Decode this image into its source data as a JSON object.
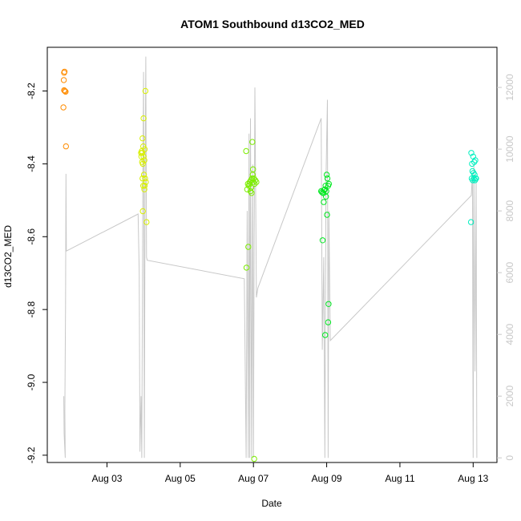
{
  "chart_data": {
    "type": "scatter",
    "title": "ATOM1 Southbound d13CO2_MED",
    "xlabel": "Date",
    "ylabel": "d13CO2_MED",
    "x_ticks": [
      {
        "label": "Aug 03",
        "day": 3
      },
      {
        "label": "Aug 05",
        "day": 5
      },
      {
        "label": "Aug 07",
        "day": 7
      },
      {
        "label": "Aug 09",
        "day": 9
      },
      {
        "label": "Aug 11",
        "day": 11
      },
      {
        "label": "Aug 13",
        "day": 13
      }
    ],
    "xlim": [
      1.37,
      13.65
    ],
    "ylim": [
      -9.22,
      -8.08
    ],
    "y_ticks": [
      "-9.2",
      "-9.0",
      "-8.8",
      "-8.6",
      "-8.4",
      "-8.2"
    ],
    "y2lim": [
      -150,
      13300
    ],
    "y2_ticks": [
      "0",
      "2000",
      "4000",
      "6000",
      "8000",
      "10000",
      "12000"
    ],
    "grid": false,
    "series": [
      {
        "color": "#ff8c00",
        "marker": "open-circle",
        "points": [
          [
            1.83,
            -8.15
          ],
          [
            1.84,
            -8.147
          ],
          [
            1.82,
            -8.17
          ],
          [
            1.85,
            -8.2
          ],
          [
            1.83,
            -8.198
          ],
          [
            1.87,
            -8.202
          ],
          [
            1.81,
            -8.245
          ],
          [
            1.88,
            -8.352
          ]
        ]
      },
      {
        "color": "#d8f000",
        "marker": "open-circle",
        "points": [
          [
            3.93,
            -8.37
          ],
          [
            3.95,
            -8.365
          ],
          [
            3.97,
            -8.33
          ],
          [
            3.99,
            -8.352
          ],
          [
            4.0,
            -8.38
          ],
          [
            4.02,
            -8.39
          ],
          [
            4.05,
            -8.2
          ],
          [
            4.0,
            -8.275
          ],
          [
            3.96,
            -8.37
          ],
          [
            3.98,
            -8.4
          ],
          [
            4.01,
            -8.43
          ],
          [
            4.04,
            -8.44
          ],
          [
            4.06,
            -8.45
          ],
          [
            3.97,
            -8.44
          ],
          [
            3.99,
            -8.46
          ],
          [
            4.02,
            -8.47
          ],
          [
            4.03,
            -8.46
          ],
          [
            3.98,
            -8.53
          ],
          [
            4.08,
            -8.56
          ],
          [
            4.03,
            -8.36
          ],
          [
            3.94,
            -8.38
          ],
          [
            3.96,
            -8.395
          ]
        ]
      },
      {
        "color": "#7ced00",
        "marker": "open-circle",
        "points": [
          [
            6.8,
            -8.365
          ],
          [
            6.83,
            -8.47
          ],
          [
            6.85,
            -8.455
          ],
          [
            6.87,
            -8.46
          ],
          [
            6.9,
            -8.45
          ],
          [
            6.93,
            -8.445
          ],
          [
            6.96,
            -8.44
          ],
          [
            6.98,
            -8.43
          ],
          [
            7.0,
            -8.45
          ],
          [
            7.03,
            -8.455
          ],
          [
            7.05,
            -8.445
          ],
          [
            7.08,
            -8.45
          ],
          [
            6.95,
            -8.48
          ],
          [
            6.92,
            -8.475
          ],
          [
            6.97,
            -8.34
          ],
          [
            6.99,
            -8.415
          ],
          [
            6.86,
            -8.628
          ],
          [
            6.81,
            -8.685
          ],
          [
            7.02,
            -9.21
          ],
          [
            6.94,
            -8.465
          ],
          [
            7.01,
            -8.44
          ],
          [
            6.89,
            -8.455
          ]
        ]
      },
      {
        "color": "#00e820",
        "marker": "open-circle",
        "points": [
          [
            8.85,
            -8.475
          ],
          [
            8.87,
            -8.478
          ],
          [
            8.9,
            -8.48
          ],
          [
            8.93,
            -8.472
          ],
          [
            8.95,
            -8.47
          ],
          [
            8.97,
            -8.46
          ],
          [
            9.0,
            -8.43
          ],
          [
            9.02,
            -8.44
          ],
          [
            9.04,
            -8.46
          ],
          [
            9.06,
            -8.455
          ],
          [
            8.98,
            -8.49
          ],
          [
            8.92,
            -8.505
          ],
          [
            9.01,
            -8.54
          ],
          [
            8.89,
            -8.61
          ],
          [
            9.05,
            -8.785
          ],
          [
            9.04,
            -8.835
          ],
          [
            8.96,
            -8.87
          ],
          [
            8.91,
            -8.48
          ],
          [
            8.99,
            -8.475
          ]
        ]
      },
      {
        "color": "#00f0c0",
        "marker": "open-circle",
        "points": [
          [
            12.95,
            -8.37
          ],
          [
            12.97,
            -8.4
          ],
          [
            13.0,
            -8.38
          ],
          [
            13.03,
            -8.395
          ],
          [
            13.06,
            -8.39
          ],
          [
            12.98,
            -8.42
          ],
          [
            13.01,
            -8.425
          ],
          [
            13.04,
            -8.43
          ],
          [
            13.07,
            -8.44
          ],
          [
            12.99,
            -8.445
          ],
          [
            13.02,
            -8.44
          ],
          [
            13.05,
            -8.445
          ],
          [
            12.96,
            -8.44
          ],
          [
            12.94,
            -8.56
          ],
          [
            13.08,
            -8.44
          ]
        ]
      }
    ],
    "secondary_line": {
      "color": "#c8c8c8",
      "axis": "right",
      "points": [
        [
          1.82,
          2000
        ],
        [
          1.83,
          800
        ],
        [
          1.84,
          500
        ],
        [
          1.86,
          0
        ],
        [
          1.85,
          1500
        ],
        [
          1.87,
          5000
        ],
        [
          1.88,
          9200
        ],
        [
          1.89,
          6700
        ],
        [
          3.85,
          7900
        ],
        [
          3.88,
          6000
        ],
        [
          3.9,
          200
        ],
        [
          3.93,
          2000
        ],
        [
          3.95,
          0
        ],
        [
          3.98,
          9000
        ],
        [
          4.0,
          12500
        ],
        [
          4.02,
          0
        ],
        [
          4.04,
          9000
        ],
        [
          4.06,
          13000
        ],
        [
          4.08,
          6500
        ],
        [
          4.1,
          6400
        ],
        [
          6.75,
          5800
        ],
        [
          6.8,
          0
        ],
        [
          6.83,
          8000
        ],
        [
          6.86,
          0
        ],
        [
          6.88,
          10500
        ],
        [
          6.9,
          0
        ],
        [
          6.92,
          11000
        ],
        [
          6.95,
          0
        ],
        [
          6.98,
          9500
        ],
        [
          7.0,
          0
        ],
        [
          7.02,
          7000
        ],
        [
          7.04,
          12000
        ],
        [
          7.08,
          5200
        ],
        [
          7.12,
          5500
        ],
        [
          8.85,
          11000
        ],
        [
          8.88,
          3500
        ],
        [
          8.92,
          6500
        ],
        [
          8.95,
          0
        ],
        [
          8.98,
          9000
        ],
        [
          9.02,
          11600
        ],
        [
          9.04,
          0
        ],
        [
          9.06,
          8000
        ],
        [
          9.1,
          3800
        ],
        [
          12.95,
          8500
        ],
        [
          12.98,
          9200
        ],
        [
          13.0,
          0
        ],
        [
          13.02,
          9500
        ],
        [
          13.05,
          2800
        ],
        [
          13.08,
          9000
        ],
        [
          13.1,
          0
        ]
      ]
    }
  }
}
